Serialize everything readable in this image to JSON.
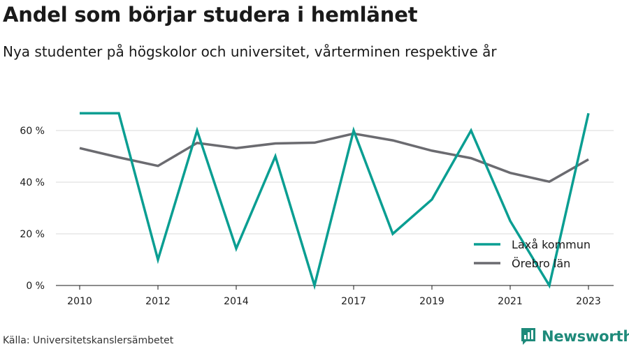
{
  "header": {
    "title": "Andel som börjar studera i hemlänet",
    "subtitle": "Nya studenter på högskolor och universitet, vårterminen respektive år"
  },
  "footer": {
    "source": "Källa: Universitetskanslersämbetet",
    "brand": "Newsworthy",
    "brand_icon": "newsworthy-logo-icon"
  },
  "colors": {
    "series_0": "#0a9e92",
    "series_1": "#6b6b70",
    "grid": "#d9d9d9",
    "brand": "#1e8a7a"
  },
  "chart_data": {
    "type": "line",
    "title": "Andel som börjar studera i hemlänet",
    "subtitle": "Nya studenter på högskolor och universitet, vårterminen respektive år",
    "x": [
      2010,
      2011,
      2012,
      2013,
      2014,
      2015,
      2016,
      2017,
      2018,
      2019,
      2020,
      2021,
      2022,
      2023
    ],
    "x_ticks": [
      "2010",
      "2012",
      "2014",
      "2017",
      "2019",
      "2021",
      "2023"
    ],
    "y_ticks": [
      "0 %",
      "20 %",
      "40 %",
      "60 %"
    ],
    "ylim": [
      0,
      70
    ],
    "grid": true,
    "legend_position": "bottom-right",
    "series": [
      {
        "name": "Laxå kommun",
        "values": [
          66.7,
          66.7,
          10,
          60,
          14.3,
          50,
          0,
          60,
          20,
          33.3,
          60,
          25,
          0,
          66.7
        ]
      },
      {
        "name": "Örebro län",
        "values": [
          53.2,
          49.6,
          46.3,
          55.2,
          53.2,
          55.0,
          55.3,
          58.8,
          56.2,
          52.2,
          49.3,
          43.6,
          40.2,
          48.8
        ]
      }
    ]
  }
}
